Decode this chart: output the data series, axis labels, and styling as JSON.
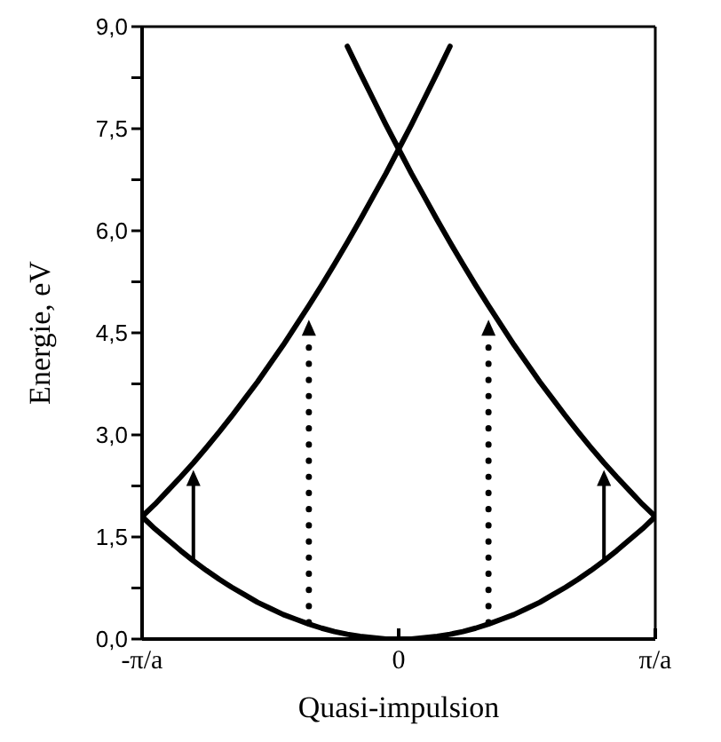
{
  "chart_data": {
    "type": "line",
    "xlabel": "Quasi-impulsion",
    "ylabel": "Energie, eV",
    "categories": [
      "-π/a",
      null,
      null,
      null,
      null,
      null,
      null,
      null,
      null,
      null,
      null,
      null,
      null,
      null,
      null,
      null,
      null,
      null,
      null,
      null,
      "0",
      null,
      null,
      null,
      null,
      null,
      null,
      null,
      null,
      null,
      null,
      null,
      null,
      null,
      null,
      null,
      null,
      null,
      null,
      null,
      "π/a"
    ],
    "ylim": [
      0,
      9
    ],
    "yticks": [
      {
        "value": 0,
        "label": "0,0"
      },
      {
        "value": 0.75,
        "label": null
      },
      {
        "value": 1.5,
        "label": "1,5"
      },
      {
        "value": 2.25,
        "label": null
      },
      {
        "value": 3,
        "label": "3,0"
      },
      {
        "value": 3.75,
        "label": null
      },
      {
        "value": 4.5,
        "label": "4,5"
      },
      {
        "value": 5.25,
        "label": null
      },
      {
        "value": 6,
        "label": "6,0"
      },
      {
        "value": 6.75,
        "label": null
      },
      {
        "value": 7.5,
        "label": "7,5"
      },
      {
        "value": 8.25,
        "label": null
      },
      {
        "value": 9,
        "label": "9,0"
      }
    ],
    "marker": "none",
    "line_style": "solid",
    "series": [
      {
        "color": "#000000",
        "values": [
          1.8,
          1.62,
          1.46,
          1.3,
          1.15,
          1.01,
          0.88,
          0.76,
          0.65,
          0.54,
          0.45,
          0.36,
          0.29,
          0.22,
          0.16,
          0.11,
          0.07,
          0.04,
          0.02,
          0,
          0,
          0,
          0.02,
          0.04,
          0.07,
          0.11,
          0.16,
          0.22,
          0.29,
          0.36,
          0.45,
          0.54,
          0.65,
          0.76,
          0.88,
          1.01,
          1.15,
          1.3,
          1.46,
          1.62,
          1.8
        ]
      },
      {
        "color": "#000000",
        "values": [
          1.8,
          1.98,
          2.18,
          2.38,
          2.59,
          2.81,
          3.04,
          3.28,
          3.53,
          3.78,
          4.05,
          4.32,
          4.61,
          4.9,
          5.2,
          5.51,
          5.83,
          6.16,
          6.5,
          6.84,
          7.2,
          7.56,
          7.94,
          8.32,
          8.71,
          null,
          null,
          null,
          null,
          null,
          null,
          null,
          null,
          null,
          null,
          null,
          null,
          null,
          null,
          null,
          null
        ]
      },
      {
        "color": "#000000",
        "values": [
          null,
          null,
          null,
          null,
          null,
          null,
          null,
          null,
          null,
          null,
          null,
          null,
          null,
          null,
          null,
          null,
          8.71,
          8.32,
          7.94,
          7.56,
          7.2,
          6.84,
          6.5,
          6.16,
          5.83,
          5.51,
          5.2,
          4.9,
          4.61,
          4.32,
          4.05,
          3.78,
          3.53,
          3.28,
          3.04,
          2.81,
          2.59,
          2.38,
          2.18,
          1.98,
          1.8
        ]
      }
    ]
  }
}
